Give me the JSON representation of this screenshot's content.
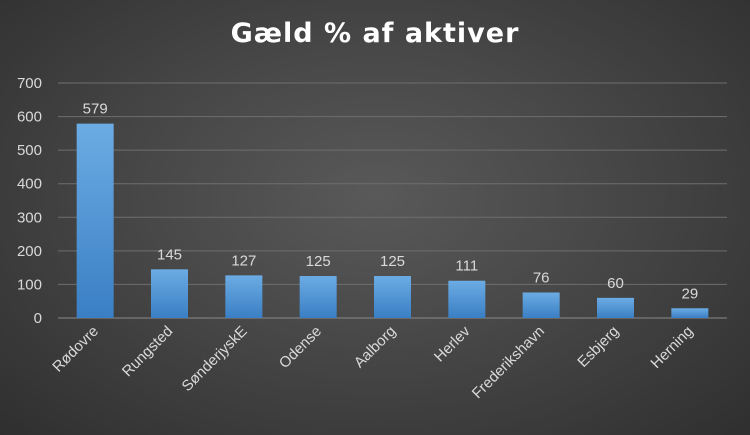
{
  "chart_data": {
    "type": "bar",
    "title": "Gæld % af aktiver",
    "categories": [
      "Rødovre",
      "Rungsted",
      "SønderjyskE",
      "Odense",
      "Aalborg",
      "Herlev",
      "Frederikshavn",
      "Esbjerg",
      "Herning"
    ],
    "values": [
      579,
      145,
      127,
      125,
      125,
      111,
      76,
      60,
      29
    ],
    "data_labels": [
      "579",
      "145",
      "127",
      "125",
      "125",
      "111",
      "76",
      "60",
      "29"
    ],
    "xlabel": "",
    "ylabel": "",
    "ylim": [
      0,
      700
    ],
    "yticks": [
      "0",
      "100",
      "200",
      "300",
      "400",
      "500",
      "600",
      "700"
    ],
    "grid": true,
    "legend": "none",
    "colors": {
      "bar_top": "#6cace4",
      "bar_bottom": "#3a7fc4",
      "gridline": "#6e6e6e",
      "text": "#d9d9d9",
      "title": "#ffffff"
    }
  }
}
